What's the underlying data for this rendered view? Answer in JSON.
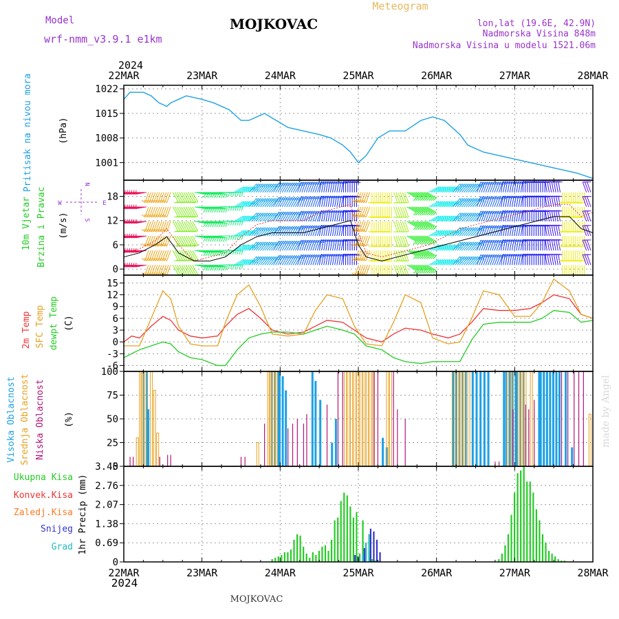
{
  "header": {
    "model_label": "Model",
    "model_name": "wrf-nmm_v3.9.1 e1km",
    "location": "MOJKOVAC",
    "product": "Meteogram",
    "coords": "lon,lat (19.6E, 42.9N)",
    "elevation": "Nadmorska Visina 848m",
    "model_elevation": "Nadmorska Visina u modelu 1521.06m",
    "footer_location": "MOJKOVAC",
    "credit": "made by Angel"
  },
  "time_axis": {
    "year": "2024",
    "ticks": [
      "22MAR",
      "23MAR",
      "24MAR",
      "25MAR",
      "26MAR",
      "27MAR",
      "28MAR"
    ],
    "days": 6
  },
  "colors": {
    "pressure": "#1ca0e6",
    "temp2m": "#ee3333",
    "sfc_temp": "#e6a020",
    "dewpoint": "#22cc22",
    "high_cloud": "#1ca0e6",
    "mid_cloud": "#e6a020",
    "low_cloud": "#b0147a",
    "total_precip": "#22cc22",
    "conv_precip": "#ee3333",
    "frozen": "#ff7a20",
    "snow": "#3333cc",
    "graupel": "#22bbbb",
    "wind_speed": "#000000",
    "gust": "#ee3333",
    "axis_label_wind": "#9933cc"
  },
  "chart_data": [
    {
      "type": "line",
      "panel": "pressure",
      "ylabel": "Pritisak na nivou mora",
      "unit": "(hPa)",
      "ylim": [
        996,
        1023
      ],
      "yticks": [
        1001,
        1008,
        1015,
        1022
      ],
      "grid": true,
      "series": [
        {
          "x": [
            0,
            0.08,
            0.25,
            0.35,
            0.45,
            0.55,
            0.6,
            0.8,
            1.0,
            1.15,
            1.35,
            1.5,
            1.6,
            1.8,
            1.95,
            2.1,
            2.3,
            2.5,
            2.65,
            2.8,
            2.9,
            3.0,
            3.1,
            3.25,
            3.4,
            3.6,
            3.8,
            3.95,
            4.1,
            4.3,
            4.4,
            4.6,
            4.8,
            5.0,
            5.2,
            5.4,
            5.6,
            5.8,
            6.0
          ],
          "y": [
            1019,
            1021,
            1021,
            1020,
            1018,
            1017,
            1018,
            1020,
            1019,
            1018,
            1016,
            1013,
            1013,
            1015,
            1013,
            1011,
            1010,
            1009,
            1008,
            1006,
            1004,
            1001,
            1003,
            1008,
            1010,
            1010,
            1013,
            1014,
            1013,
            1009,
            1006,
            1004,
            1003,
            1002,
            1001,
            1000,
            999,
            998,
            996.5
          ]
        }
      ]
    },
    {
      "type": "line",
      "panel": "wind",
      "ylabel": "10m Vjetar Brzina i Pravac",
      "unit": "(m/s)",
      "ylim": [
        -1.5,
        22
      ],
      "yticks": [
        0,
        6,
        12,
        18
      ],
      "direction_legend": [
        "N",
        "E",
        "S",
        "W"
      ],
      "grid": true,
      "series": [
        {
          "name": "speed",
          "x": [
            0,
            0.2,
            0.4,
            0.55,
            0.7,
            0.9,
            1.1,
            1.3,
            1.5,
            1.7,
            1.9,
            2.1,
            2.3,
            2.5,
            2.7,
            2.9,
            3.0,
            3.1,
            3.3,
            3.5,
            3.7,
            3.9,
            4.1,
            4.3,
            4.5,
            4.7,
            4.9,
            5.1,
            5.3,
            5.5,
            5.7,
            5.85,
            6.0
          ],
          "y": [
            3,
            4,
            6,
            8,
            4,
            2,
            2,
            3,
            6,
            8,
            9,
            9,
            9,
            10,
            11,
            12,
            6,
            3,
            2,
            3,
            4,
            5,
            6,
            7,
            8,
            9,
            10,
            11,
            12,
            13,
            13,
            10,
            9
          ]
        },
        {
          "name": "gust",
          "x": [
            0,
            0.2,
            0.4,
            0.55,
            0.7,
            0.9,
            1.1,
            1.3,
            1.5,
            1.7,
            1.9,
            2.1,
            2.3,
            2.5,
            2.7,
            2.9,
            3.0,
            3.1,
            3.3,
            3.5,
            3.7,
            3.9,
            4.1,
            4.3,
            4.5,
            4.7,
            4.9,
            5.1,
            5.3,
            5.5,
            5.7,
            5.85,
            6.0
          ],
          "y": [
            4,
            5,
            7,
            10,
            6,
            2,
            3,
            4,
            8,
            11,
            12,
            12,
            12,
            14,
            15,
            16,
            9,
            4,
            3,
            4,
            5,
            6,
            8,
            10,
            11,
            12,
            13,
            14,
            15,
            16,
            16,
            13,
            14
          ]
        }
      ],
      "barbs_dir": [
        {
          "x": 0.0,
          "dir": 260
        },
        {
          "x": 0.3,
          "dir": 200
        },
        {
          "x": 0.6,
          "dir": 150
        },
        {
          "x": 0.9,
          "dir": 100
        },
        {
          "x": 1.2,
          "dir": 90
        },
        {
          "x": 1.4,
          "dir": 60
        },
        {
          "x": 1.6,
          "dir": 40
        },
        {
          "x": 1.9,
          "dir": 30
        },
        {
          "x": 2.2,
          "dir": 20
        },
        {
          "x": 2.5,
          "dir": 10
        },
        {
          "x": 2.8,
          "dir": 0
        },
        {
          "x": 3.0,
          "dir": 200
        },
        {
          "x": 3.15,
          "dir": 180
        },
        {
          "x": 3.45,
          "dir": 160
        },
        {
          "x": 3.6,
          "dir": 120
        },
        {
          "x": 3.9,
          "dir": 60
        },
        {
          "x": 4.2,
          "dir": 40
        },
        {
          "x": 4.5,
          "dir": 20
        },
        {
          "x": 4.8,
          "dir": 10
        },
        {
          "x": 5.1,
          "dir": 0
        },
        {
          "x": 5.4,
          "dir": 350
        },
        {
          "x": 5.6,
          "dir": 180
        },
        {
          "x": 5.9,
          "dir": 340
        }
      ]
    },
    {
      "type": "line",
      "panel": "temperature",
      "ylabel": [
        "2m Temp",
        "SFC Temp",
        "dewpt Temp"
      ],
      "unit": "(C)",
      "ylim": [
        -7.5,
        17
      ],
      "yticks": [
        -6,
        -3,
        0,
        3,
        6,
        9,
        12,
        15
      ],
      "grid": true,
      "series": [
        {
          "name": "2m Temp",
          "x": [
            0,
            0.1,
            0.2,
            0.35,
            0.5,
            0.6,
            0.7,
            0.85,
            1.0,
            1.2,
            1.3,
            1.45,
            1.6,
            1.75,
            1.9,
            2.1,
            2.3,
            2.45,
            2.6,
            2.8,
            2.95,
            3.1,
            3.3,
            3.45,
            3.6,
            3.8,
            3.95,
            4.15,
            4.3,
            4.45,
            4.6,
            4.8,
            5.0,
            5.2,
            5.35,
            5.5,
            5.7,
            5.85,
            6.0
          ],
          "y": [
            0,
            1.5,
            1,
            4,
            6.5,
            5.5,
            3,
            1.5,
            1,
            1.5,
            4,
            7,
            8.5,
            6,
            3,
            2,
            2.5,
            4,
            5.5,
            5,
            3,
            1,
            0,
            2,
            3.5,
            3,
            2,
            1,
            2,
            5,
            8.5,
            8,
            8,
            8.5,
            10,
            12,
            11,
            7,
            6
          ]
        },
        {
          "name": "SFC Temp",
          "x": [
            0,
            0.1,
            0.2,
            0.35,
            0.5,
            0.6,
            0.7,
            0.85,
            1.0,
            1.2,
            1.3,
            1.45,
            1.6,
            1.75,
            1.9,
            2.1,
            2.3,
            2.45,
            2.6,
            2.8,
            2.95,
            3.1,
            3.3,
            3.45,
            3.6,
            3.8,
            3.95,
            4.15,
            4.3,
            4.45,
            4.6,
            4.8,
            5.0,
            5.2,
            5.35,
            5.5,
            5.7,
            5.85,
            6.0
          ],
          "y": [
            -1,
            -1,
            -1,
            6,
            13,
            11,
            4,
            -0.5,
            -1,
            -1,
            5,
            12,
            14.5,
            9,
            2,
            1.5,
            2,
            8,
            12,
            11,
            4,
            -0.5,
            -1,
            5,
            12,
            10,
            1,
            -0.5,
            0,
            6,
            13,
            12,
            6.5,
            6.5,
            10,
            16,
            13,
            7,
            6
          ]
        },
        {
          "name": "dewpt Temp",
          "x": [
            0,
            0.1,
            0.2,
            0.35,
            0.5,
            0.6,
            0.7,
            0.85,
            1.0,
            1.2,
            1.3,
            1.45,
            1.6,
            1.75,
            1.9,
            2.1,
            2.3,
            2.45,
            2.6,
            2.8,
            2.95,
            3.1,
            3.3,
            3.45,
            3.6,
            3.8,
            3.95,
            4.15,
            4.3,
            4.45,
            4.6,
            4.8,
            5.0,
            5.2,
            5.35,
            5.5,
            5.7,
            5.85,
            6.0
          ],
          "y": [
            -4,
            -3,
            -2,
            -1,
            0,
            -0.5,
            -2.5,
            -4,
            -4.5,
            -6,
            -6,
            -2,
            1,
            2,
            2.5,
            2.5,
            2,
            3,
            4,
            3,
            2,
            -1,
            -2,
            -4,
            -5,
            -5.5,
            -5,
            -5,
            -5,
            0.5,
            4.5,
            5,
            5,
            5,
            6,
            8,
            7.5,
            5,
            5.5
          ]
        }
      ]
    },
    {
      "type": "bar",
      "panel": "clouds",
      "ylabel": [
        "Visoka Oblacnost",
        "Srednja Oblacnost",
        "Niska Oblacnost"
      ],
      "unit": "(%)",
      "ylim": [
        0,
        100
      ],
      "yticks": [
        0,
        25,
        50,
        75,
        100
      ],
      "grid": true,
      "bar_width_days": 0.0115,
      "series": [
        {
          "name": "Visoka Oblacnost",
          "x": [
            0.24,
            0.28,
            0.3,
            1.88,
            1.92,
            1.96,
            1.98,
            2.02,
            2.06,
            2.4,
            2.44,
            2.5,
            2.65,
            2.7,
            3.3,
            3.35,
            4.2,
            4.24,
            4.28,
            4.32,
            4.36,
            4.45,
            4.5,
            4.55,
            4.6,
            4.65,
            4.85,
            4.88,
            4.92,
            4.96,
            5.0,
            5.02,
            5.06,
            5.1,
            5.3,
            5.32,
            5.36,
            5.4,
            5.44,
            5.48,
            5.52,
            5.56,
            5.64,
            5.72
          ],
          "y": [
            100,
            100,
            60,
            100,
            100,
            100,
            100,
            95,
            80,
            100,
            90,
            70,
            25,
            50,
            30,
            20,
            100,
            100,
            100,
            100,
            100,
            100,
            100,
            100,
            100,
            100,
            100,
            100,
            100,
            100,
            100,
            100,
            100,
            100,
            100,
            100,
            100,
            100,
            100,
            100,
            100,
            100,
            100,
            20
          ]
        },
        {
          "name": "Srednja Oblacnost",
          "x": [
            0.16,
            0.2,
            0.22,
            0.26,
            0.34,
            0.38,
            0.42,
            1.7,
            1.84,
            1.86,
            1.9,
            1.94,
            2.82,
            2.86,
            2.9,
            2.94,
            2.98,
            3.02,
            3.06,
            3.1,
            3.14,
            3.18,
            3.36,
            3.4,
            4.2,
            4.26,
            4.3,
            4.34,
            4.4,
            4.9,
            4.95,
            5.04,
            5.08,
            5.12,
            5.2,
            5.95
          ],
          "y": [
            30,
            100,
            100,
            100,
            100,
            80,
            35,
            25,
            100,
            100,
            100,
            100,
            100,
            100,
            100,
            100,
            100,
            100,
            100,
            100,
            100,
            100,
            100,
            100,
            100,
            100,
            100,
            100,
            100,
            100,
            100,
            100,
            100,
            100,
            100,
            55
          ]
        },
        {
          "name": "Niska Oblacnost",
          "x": [
            0.08,
            0.12,
            0.46,
            0.56,
            0.6,
            1.5,
            1.55,
            1.8,
            2.1,
            2.16,
            2.22,
            2.3,
            2.34,
            2.6,
            2.74,
            2.8,
            3.2,
            3.25,
            3.45,
            3.5,
            3.6,
            4.75,
            4.8,
            4.98,
            5.14,
            5.18,
            5.25,
            5.6,
            5.68,
            5.76,
            5.82,
            5.88
          ],
          "y": [
            10,
            10,
            10,
            12,
            12,
            10,
            10,
            45,
            40,
            45,
            50,
            45,
            55,
            65,
            100,
            100,
            100,
            100,
            100,
            60,
            50,
            5,
            5,
            60,
            65,
            60,
            70,
            100,
            100,
            100,
            100,
            100
          ]
        }
      ]
    },
    {
      "type": "bar",
      "panel": "precip",
      "ylabel": "1hr Precip (mm)",
      "legend": [
        "Ukupna Kisa",
        "Konvek.Kisa",
        "Zaledj.Kisa",
        "Snijeg",
        "Grad"
      ],
      "ylim": [
        0,
        3.45
      ],
      "yticks": [
        0,
        0.69,
        1.38,
        2.07,
        2.76,
        3.45
      ],
      "grid": true,
      "bar_width_days": 0.024,
      "series": [
        {
          "name": "Ukupna Kisa",
          "x": [
            1.9,
            1.94,
            1.98,
            2.02,
            2.06,
            2.1,
            2.14,
            2.18,
            2.22,
            2.26,
            2.3,
            2.34,
            2.38,
            2.42,
            2.46,
            2.5,
            2.54,
            2.58,
            2.62,
            2.66,
            2.7,
            2.74,
            2.78,
            2.82,
            2.86,
            2.9,
            2.94,
            2.98,
            3.02,
            3.06,
            3.1,
            3.14,
            3.18,
            3.22,
            3.26,
            4.8,
            4.84,
            4.88,
            4.92,
            4.96,
            5.0,
            5.04,
            5.08,
            5.12,
            5.16,
            5.2,
            5.24,
            5.28,
            5.32,
            5.36,
            5.4,
            5.44,
            5.48,
            5.52,
            5.56,
            5.6,
            5.64,
            5.68,
            5.72
          ],
          "y": [
            0.1,
            0.15,
            0.2,
            0.25,
            0.35,
            0.35,
            0.45,
            0.8,
            1.0,
            0.95,
            0.55,
            0.3,
            0.15,
            0.35,
            0.25,
            0.4,
            0.55,
            0.6,
            0.4,
            0.8,
            1.5,
            1.6,
            2.2,
            2.5,
            2.4,
            2.0,
            1.6,
            1.8,
            0.3,
            1.5,
            0.5,
            0.4,
            0.1,
            0.05,
            0.02,
            0.1,
            0.3,
            0.6,
            1.0,
            1.7,
            2.5,
            3.2,
            3.3,
            3.45,
            2.9,
            2.9,
            2.5,
            1.9,
            1.5,
            1.0,
            0.7,
            0.4,
            0.3,
            0.2,
            0.1,
            0.05,
            0.05,
            0.02,
            0.02
          ]
        },
        {
          "name": "Snijeg",
          "x": [
            2.96,
            3.0,
            3.08,
            3.16,
            3.2,
            3.24,
            3.28
          ],
          "y": [
            0.25,
            0.2,
            0.5,
            1.2,
            1.1,
            0.8,
            0.35
          ]
        },
        {
          "name": "Grad",
          "x": [
            3.06,
            3.1,
            3.14
          ],
          "y": [
            0.3,
            0.7,
            1.0
          ]
        }
      ]
    }
  ]
}
